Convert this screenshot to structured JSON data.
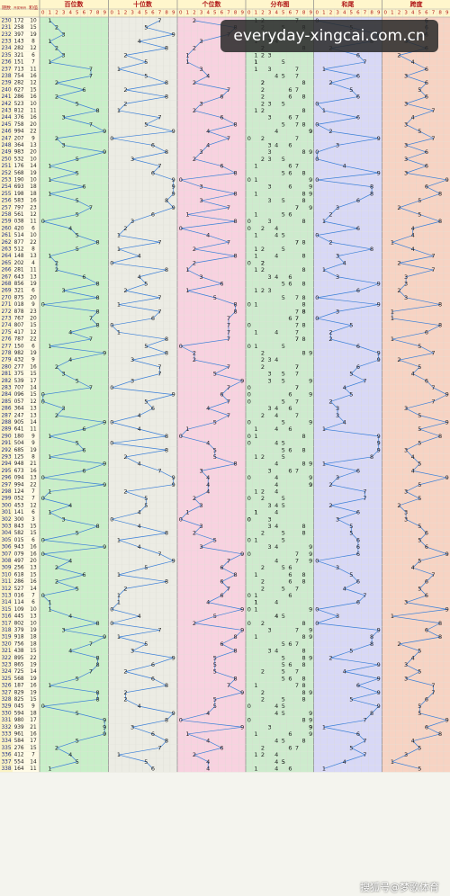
{
  "header": {
    "issue": "期数",
    "draw": "开奖号码",
    "sum": "和值"
  },
  "watermark": "everyday-xingcai.com.cn",
  "footer": "搜狐号@梦歌体育",
  "table": {
    "columns": [
      "百位数",
      "十位数",
      "个位数",
      "分布图",
      "和尾",
      "跨度"
    ],
    "digits": [
      0,
      1,
      2,
      3,
      4,
      5,
      6,
      7,
      8,
      9
    ],
    "rows": [
      {
        "issue": "230",
        "draw": [
          1,
          7,
          2
        ],
        "sum": 10,
        "tail": 0,
        "span": 6
      },
      {
        "issue": "231",
        "draw": [
          2,
          5,
          8
        ],
        "sum": 15,
        "tail": 5,
        "span": 6
      },
      {
        "issue": "232",
        "draw": [
          3,
          9,
          7
        ],
        "sum": 19,
        "tail": 9,
        "span": 6
      },
      {
        "issue": "233",
        "draw": [
          1,
          4,
          3
        ],
        "sum": 8,
        "tail": 8,
        "span": 3
      },
      {
        "issue": "234",
        "draw": [
          2,
          8,
          2
        ],
        "sum": 12,
        "tail": 2,
        "span": 6
      },
      {
        "issue": "235",
        "draw": [
          3,
          2,
          1
        ],
        "sum": 6,
        "tail": 6,
        "span": 2
      },
      {
        "issue": "236",
        "draw": [
          1,
          5,
          1
        ],
        "sum": 7,
        "tail": 7,
        "span": 4
      },
      {
        "issue": "237",
        "draw": [
          7,
          1,
          3
        ],
        "sum": 11,
        "tail": 1,
        "span": 6
      },
      {
        "issue": "238",
        "draw": [
          7,
          5,
          4
        ],
        "sum": 16,
        "tail": 6,
        "span": 3
      },
      {
        "issue": "239",
        "draw": [
          2,
          8,
          2
        ],
        "sum": 12,
        "tail": 2,
        "span": 6
      },
      {
        "issue": "240",
        "draw": [
          6,
          2,
          7
        ],
        "sum": 15,
        "tail": 5,
        "span": 5
      },
      {
        "issue": "241",
        "draw": [
          2,
          8,
          6
        ],
        "sum": 16,
        "tail": 6,
        "span": 6
      },
      {
        "issue": "242",
        "draw": [
          5,
          2,
          3
        ],
        "sum": 10,
        "tail": 0,
        "span": 3
      },
      {
        "issue": "243",
        "draw": [
          8,
          1,
          2
        ],
        "sum": 11,
        "tail": 1,
        "span": 7
      },
      {
        "issue": "244",
        "draw": [
          3,
          7,
          6
        ],
        "sum": 16,
        "tail": 6,
        "span": 4
      },
      {
        "issue": "245",
        "draw": [
          7,
          5,
          8
        ],
        "sum": 20,
        "tail": 0,
        "span": 3
      },
      {
        "issue": "246",
        "draw": [
          9,
          9,
          4
        ],
        "sum": 22,
        "tail": 2,
        "span": 5
      },
      {
        "issue": "247",
        "draw": [
          2,
          0,
          7
        ],
        "sum": 9,
        "tail": 9,
        "span": 7
      },
      {
        "issue": "248",
        "draw": [
          3,
          6,
          4
        ],
        "sum": 13,
        "tail": 3,
        "span": 3
      },
      {
        "issue": "249",
        "draw": [
          9,
          8,
          3
        ],
        "sum": 20,
        "tail": 0,
        "span": 6
      },
      {
        "issue": "250",
        "draw": [
          5,
          3,
          2
        ],
        "sum": 10,
        "tail": 0,
        "span": 3
      },
      {
        "issue": "251",
        "draw": [
          1,
          7,
          6
        ],
        "sum": 14,
        "tail": 4,
        "span": 6
      },
      {
        "issue": "252",
        "draw": [
          5,
          6,
          8
        ],
        "sum": 19,
        "tail": 9,
        "span": 3
      },
      {
        "issue": "253",
        "draw": [
          1,
          9,
          0
        ],
        "sum": 10,
        "tail": 0,
        "span": 9
      },
      {
        "issue": "254",
        "draw": [
          6,
          9,
          3
        ],
        "sum": 18,
        "tail": 8,
        "span": 6
      },
      {
        "issue": "255",
        "draw": [
          1,
          9,
          8
        ],
        "sum": 18,
        "tail": 8,
        "span": 8
      },
      {
        "issue": "256",
        "draw": [
          5,
          8,
          3
        ],
        "sum": 16,
        "tail": 6,
        "span": 5
      },
      {
        "issue": "257",
        "draw": [
          7,
          9,
          7
        ],
        "sum": 23,
        "tail": 3,
        "span": 2
      },
      {
        "issue": "258",
        "draw": [
          5,
          6,
          1
        ],
        "sum": 12,
        "tail": 2,
        "span": 5
      },
      {
        "issue": "259",
        "draw": [
          0,
          3,
          8
        ],
        "sum": 11,
        "tail": 1,
        "span": 8
      },
      {
        "issue": "260",
        "draw": [
          4,
          2,
          0
        ],
        "sum": 6,
        "tail": 6,
        "span": 4
      },
      {
        "issue": "261",
        "draw": [
          5,
          1,
          4
        ],
        "sum": 10,
        "tail": 0,
        "span": 4
      },
      {
        "issue": "262",
        "draw": [
          8,
          7,
          7
        ],
        "sum": 22,
        "tail": 2,
        "span": 1
      },
      {
        "issue": "263",
        "draw": [
          5,
          1,
          2
        ],
        "sum": 8,
        "tail": 8,
        "span": 4
      },
      {
        "issue": "264",
        "draw": [
          1,
          4,
          8
        ],
        "sum": 13,
        "tail": 3,
        "span": 7
      },
      {
        "issue": "265",
        "draw": [
          2,
          0,
          2
        ],
        "sum": 4,
        "tail": 4,
        "span": 2
      },
      {
        "issue": "266",
        "draw": [
          2,
          8,
          1
        ],
        "sum": 11,
        "tail": 1,
        "span": 7
      },
      {
        "issue": "267",
        "draw": [
          6,
          4,
          3
        ],
        "sum": 13,
        "tail": 3,
        "span": 3
      },
      {
        "issue": "268",
        "draw": [
          8,
          5,
          6
        ],
        "sum": 19,
        "tail": 9,
        "span": 3
      },
      {
        "issue": "269",
        "draw": [
          3,
          2,
          1
        ],
        "sum": 6,
        "tail": 6,
        "span": 2
      },
      {
        "issue": "270",
        "draw": [
          8,
          7,
          5
        ],
        "sum": 20,
        "tail": 0,
        "span": 3
      },
      {
        "issue": "271",
        "draw": [
          0,
          1,
          8
        ],
        "sum": 9,
        "tail": 9,
        "span": 8
      },
      {
        "issue": "272",
        "draw": [
          8,
          7,
          8
        ],
        "sum": 23,
        "tail": 3,
        "span": 1
      },
      {
        "issue": "273",
        "draw": [
          7,
          6,
          7
        ],
        "sum": 20,
        "tail": 0,
        "span": 1
      },
      {
        "issue": "274",
        "draw": [
          8,
          0,
          7
        ],
        "sum": 15,
        "tail": 5,
        "span": 8
      },
      {
        "issue": "275",
        "draw": [
          4,
          1,
          7
        ],
        "sum": 12,
        "tail": 2,
        "span": 6
      },
      {
        "issue": "276",
        "draw": [
          7,
          8,
          7
        ],
        "sum": 22,
        "tail": 2,
        "span": 1
      },
      {
        "issue": "277",
        "draw": [
          1,
          5,
          0
        ],
        "sum": 6,
        "tail": 6,
        "span": 5
      },
      {
        "issue": "278",
        "draw": [
          9,
          8,
          2
        ],
        "sum": 19,
        "tail": 9,
        "span": 7
      },
      {
        "issue": "279",
        "draw": [
          4,
          3,
          2
        ],
        "sum": 9,
        "tail": 9,
        "span": 2
      },
      {
        "issue": "280",
        "draw": [
          2,
          7,
          7
        ],
        "sum": 16,
        "tail": 6,
        "span": 5
      },
      {
        "issue": "281",
        "draw": [
          3,
          7,
          5
        ],
        "sum": 15,
        "tail": 5,
        "span": 4
      },
      {
        "issue": "282",
        "draw": [
          5,
          3,
          9
        ],
        "sum": 17,
        "tail": 7,
        "span": 6
      },
      {
        "issue": "283",
        "draw": [
          7,
          0,
          7
        ],
        "sum": 14,
        "tail": 4,
        "span": 7
      },
      {
        "issue": "284",
        "draw": [
          0,
          9,
          6
        ],
        "sum": 15,
        "tail": 5,
        "span": 9
      },
      {
        "issue": "285",
        "draw": [
          0,
          5,
          7
        ],
        "sum": 12,
        "tail": 2,
        "span": 7
      },
      {
        "issue": "286",
        "draw": [
          3,
          6,
          4
        ],
        "sum": 13,
        "tail": 3,
        "span": 3
      },
      {
        "issue": "287",
        "draw": [
          2,
          4,
          7
        ],
        "sum": 13,
        "tail": 3,
        "span": 5
      },
      {
        "issue": "288",
        "draw": [
          9,
          0,
          5
        ],
        "sum": 14,
        "tail": 4,
        "span": 9
      },
      {
        "issue": "289",
        "draw": [
          6,
          4,
          1
        ],
        "sum": 11,
        "tail": 1,
        "span": 5
      },
      {
        "issue": "290",
        "draw": [
          1,
          8,
          0
        ],
        "sum": 9,
        "tail": 9,
        "span": 8
      },
      {
        "issue": "291",
        "draw": [
          5,
          0,
          4
        ],
        "sum": 9,
        "tail": 9,
        "span": 5
      },
      {
        "issue": "292",
        "draw": [
          6,
          8,
          5
        ],
        "sum": 19,
        "tail": 9,
        "span": 3
      },
      {
        "issue": "293",
        "draw": [
          1,
          2,
          5
        ],
        "sum": 8,
        "tail": 8,
        "span": 4
      },
      {
        "issue": "294",
        "draw": [
          9,
          4,
          8
        ],
        "sum": 21,
        "tail": 1,
        "span": 5
      },
      {
        "issue": "295",
        "draw": [
          6,
          7,
          3
        ],
        "sum": 16,
        "tail": 6,
        "span": 4
      },
      {
        "issue": "296",
        "draw": [
          0,
          9,
          4
        ],
        "sum": 13,
        "tail": 3,
        "span": 9
      },
      {
        "issue": "297",
        "draw": [
          9,
          9,
          4
        ],
        "sum": 22,
        "tail": 2,
        "span": 5
      },
      {
        "issue": "298",
        "draw": [
          1,
          2,
          4
        ],
        "sum": 7,
        "tail": 7,
        "span": 3
      },
      {
        "issue": "299",
        "draw": [
          0,
          5,
          2
        ],
        "sum": 7,
        "tail": 7,
        "span": 5
      },
      {
        "issue": "300",
        "draw": [
          4,
          5,
          3
        ],
        "sum": 12,
        "tail": 2,
        "span": 2
      },
      {
        "issue": "301",
        "draw": [
          1,
          4,
          1
        ],
        "sum": 6,
        "tail": 6,
        "span": 3
      },
      {
        "issue": "302",
        "draw": [
          3,
          0,
          0
        ],
        "sum": 3,
        "tail": 3,
        "span": 3
      },
      {
        "issue": "303",
        "draw": [
          8,
          4,
          3
        ],
        "sum": 15,
        "tail": 5,
        "span": 5
      },
      {
        "issue": "304",
        "draw": [
          5,
          8,
          2
        ],
        "sum": 15,
        "tail": 5,
        "span": 6
      },
      {
        "issue": "305",
        "draw": [
          0,
          1,
          5
        ],
        "sum": 6,
        "tail": 6,
        "span": 5
      },
      {
        "issue": "306",
        "draw": [
          9,
          4,
          3
        ],
        "sum": 16,
        "tail": 6,
        "span": 6
      },
      {
        "issue": "307",
        "draw": [
          0,
          7,
          9
        ],
        "sum": 16,
        "tail": 6,
        "span": 9
      },
      {
        "issue": "308",
        "draw": [
          4,
          9,
          7
        ],
        "sum": 20,
        "tail": 0,
        "span": 5
      },
      {
        "issue": "309",
        "draw": [
          2,
          5,
          6
        ],
        "sum": 13,
        "tail": 3,
        "span": 4
      },
      {
        "issue": "310",
        "draw": [
          6,
          1,
          8
        ],
        "sum": 15,
        "tail": 5,
        "span": 7
      },
      {
        "issue": "311",
        "draw": [
          2,
          8,
          6
        ],
        "sum": 16,
        "tail": 6,
        "span": 6
      },
      {
        "issue": "312",
        "draw": [
          5,
          2,
          7
        ],
        "sum": 14,
        "tail": 4,
        "span": 5
      },
      {
        "issue": "313",
        "draw": [
          0,
          1,
          6
        ],
        "sum": 7,
        "tail": 7,
        "span": 6
      },
      {
        "issue": "314",
        "draw": [
          1,
          1,
          4
        ],
        "sum": 6,
        "tail": 6,
        "span": 3
      },
      {
        "issue": "315",
        "draw": [
          1,
          0,
          9
        ],
        "sum": 10,
        "tail": 0,
        "span": 9
      },
      {
        "issue": "316",
        "draw": [
          4,
          4,
          5
        ],
        "sum": 13,
        "tail": 3,
        "span": 1
      },
      {
        "issue": "317",
        "draw": [
          8,
          0,
          2
        ],
        "sum": 10,
        "tail": 0,
        "span": 8
      },
      {
        "issue": "318",
        "draw": [
          3,
          7,
          9
        ],
        "sum": 19,
        "tail": 9,
        "span": 6
      },
      {
        "issue": "319",
        "draw": [
          9,
          1,
          8
        ],
        "sum": 18,
        "tail": 8,
        "span": 8
      },
      {
        "issue": "320",
        "draw": [
          7,
          5,
          6
        ],
        "sum": 18,
        "tail": 8,
        "span": 2
      },
      {
        "issue": "321",
        "draw": [
          4,
          3,
          8
        ],
        "sum": 15,
        "tail": 5,
        "span": 5
      },
      {
        "issue": "322",
        "draw": [
          8,
          9,
          5
        ],
        "sum": 22,
        "tail": 2,
        "span": 4
      },
      {
        "issue": "323",
        "draw": [
          8,
          6,
          5
        ],
        "sum": 19,
        "tail": 9,
        "span": 3
      },
      {
        "issue": "324",
        "draw": [
          7,
          2,
          5
        ],
        "sum": 14,
        "tail": 4,
        "span": 5
      },
      {
        "issue": "325",
        "draw": [
          5,
          6,
          8
        ],
        "sum": 19,
        "tail": 9,
        "span": 3
      },
      {
        "issue": "326",
        "draw": [
          1,
          8,
          7
        ],
        "sum": 16,
        "tail": 6,
        "span": 7
      },
      {
        "issue": "327",
        "draw": [
          8,
          2,
          9
        ],
        "sum": 19,
        "tail": 9,
        "span": 7
      },
      {
        "issue": "328",
        "draw": [
          8,
          2,
          5
        ],
        "sum": 15,
        "tail": 5,
        "span": 6
      },
      {
        "issue": "329",
        "draw": [
          0,
          4,
          5
        ],
        "sum": 9,
        "tail": 9,
        "span": 5
      },
      {
        "issue": "330",
        "draw": [
          5,
          9,
          4
        ],
        "sum": 18,
        "tail": 8,
        "span": 5
      },
      {
        "issue": "331",
        "draw": [
          9,
          8,
          0
        ],
        "sum": 17,
        "tail": 7,
        "span": 9
      },
      {
        "issue": "332",
        "draw": [
          9,
          3,
          9
        ],
        "sum": 21,
        "tail": 1,
        "span": 6
      },
      {
        "issue": "333",
        "draw": [
          9,
          6,
          1
        ],
        "sum": 16,
        "tail": 6,
        "span": 8
      },
      {
        "issue": "334",
        "draw": [
          5,
          8,
          4
        ],
        "sum": 17,
        "tail": 7,
        "span": 4
      },
      {
        "issue": "335",
        "draw": [
          2,
          7,
          6
        ],
        "sum": 15,
        "tail": 5,
        "span": 5
      },
      {
        "issue": "336",
        "draw": [
          4,
          1,
          2
        ],
        "sum": 7,
        "tail": 7,
        "span": 3
      },
      {
        "issue": "337",
        "draw": [
          5,
          5,
          4
        ],
        "sum": 14,
        "tail": 4,
        "span": 1
      },
      {
        "issue": "338",
        "draw": [
          1,
          6,
          4
        ],
        "sum": 11,
        "tail": 1,
        "span": 5
      }
    ]
  }
}
